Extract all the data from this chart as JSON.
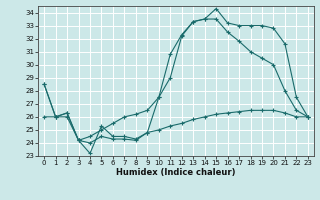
{
  "xlabel": "Humidex (Indice chaleur)",
  "bg_color": "#cce8e8",
  "grid_color": "#ffffff",
  "line_color": "#1a6b6b",
  "xlim": [
    -0.5,
    23.5
  ],
  "ylim": [
    23,
    34.5
  ],
  "yticks": [
    23,
    24,
    25,
    26,
    27,
    28,
    29,
    30,
    31,
    32,
    33,
    34
  ],
  "xticks": [
    0,
    1,
    2,
    3,
    4,
    5,
    6,
    7,
    8,
    9,
    10,
    11,
    12,
    13,
    14,
    15,
    16,
    17,
    18,
    19,
    20,
    21,
    22,
    23
  ],
  "line1_x": [
    0,
    1,
    2,
    3,
    4,
    5,
    6,
    7,
    8,
    9,
    10,
    11,
    12,
    13,
    14,
    15,
    16,
    17,
    18,
    19,
    20,
    21,
    22,
    23
  ],
  "line1_y": [
    28.5,
    26.0,
    26.3,
    24.2,
    23.2,
    25.3,
    24.5,
    24.5,
    24.3,
    24.8,
    27.5,
    29.0,
    32.2,
    33.3,
    33.5,
    34.3,
    33.2,
    33.0,
    33.0,
    33.0,
    32.8,
    31.6,
    27.5,
    26.0
  ],
  "line2_x": [
    0,
    1,
    2,
    3,
    4,
    5,
    6,
    7,
    8,
    9,
    10,
    11,
    12,
    13,
    14,
    15,
    16,
    17,
    18,
    19,
    20,
    21,
    22,
    23
  ],
  "line2_y": [
    28.5,
    26.0,
    26.3,
    24.2,
    24.5,
    25.0,
    25.5,
    26.0,
    26.2,
    26.5,
    27.5,
    30.8,
    32.3,
    33.3,
    33.5,
    33.5,
    32.5,
    31.8,
    31.0,
    30.5,
    30.0,
    28.0,
    26.5,
    26.0
  ],
  "line3_x": [
    0,
    1,
    2,
    3,
    4,
    5,
    6,
    7,
    8,
    9,
    10,
    11,
    12,
    13,
    14,
    15,
    16,
    17,
    18,
    19,
    20,
    21,
    22,
    23
  ],
  "line3_y": [
    26.0,
    26.0,
    26.0,
    24.2,
    24.0,
    24.5,
    24.3,
    24.3,
    24.2,
    24.8,
    25.0,
    25.3,
    25.5,
    25.8,
    26.0,
    26.2,
    26.3,
    26.4,
    26.5,
    26.5,
    26.5,
    26.3,
    26.0,
    26.0
  ]
}
